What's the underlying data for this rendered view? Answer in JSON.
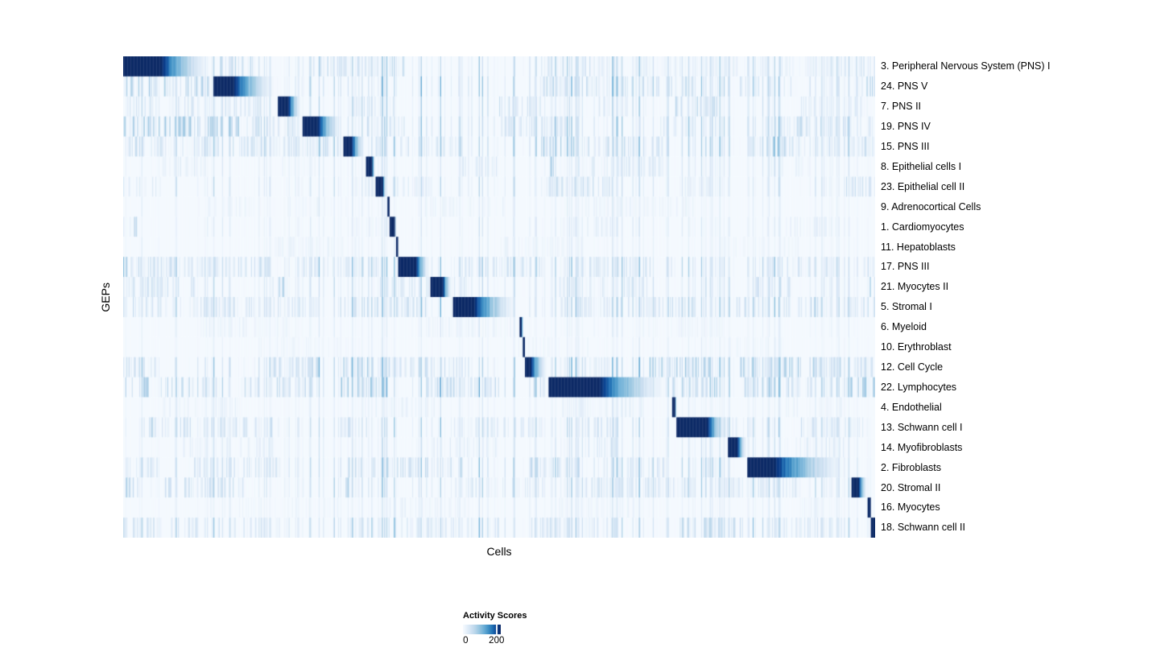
{
  "chart_data": {
    "type": "heatmap",
    "title": "",
    "xlabel": "Cells",
    "ylabel": "GEPs",
    "x_tick_labels": [],
    "legend": {
      "title": "Activity Scores",
      "min_label": "0",
      "max_label": "200",
      "min_value": 0,
      "tick_value": 200,
      "vmax": 225
    },
    "colormap": {
      "name": "Blues",
      "stops": [
        "#f7fbff",
        "#e3eef9",
        "#cfe1f2",
        "#b5d4e9",
        "#93c3df",
        "#6baed6",
        "#4292c6",
        "#2171b5",
        "#0a4191",
        "#0d2a66"
      ]
    },
    "n_cols": 700,
    "seed": 1337,
    "base_value": 0.018,
    "rows": [
      {
        "label": "3. Peripheral Nervous System (PNS) I",
        "block": [
          0.0,
          0.12
        ],
        "dark": 0.42,
        "noise": 0.8,
        "regions": [
          [
            0.12,
            0.175,
            0.3
          ],
          [
            0.25,
            0.34,
            0.28
          ],
          [
            0.355,
            0.375,
            0.35
          ],
          [
            0.555,
            0.625,
            0.4
          ],
          [
            0.63,
            0.8,
            0.12
          ],
          [
            0.8,
            0.97,
            0.15
          ],
          [
            0.975,
            1.0,
            0.25
          ]
        ]
      },
      {
        "label": "24. PNS V",
        "block": [
          0.12,
          0.206
        ],
        "dark": 0.31,
        "noise": 1.0,
        "regions": [
          [
            0.0,
            0.115,
            0.4
          ],
          [
            0.555,
            0.63,
            0.32
          ],
          [
            0.63,
            0.76,
            0.25
          ],
          [
            0.82,
            0.89,
            0.18
          ],
          [
            0.975,
            1.0,
            0.35
          ]
        ]
      },
      {
        "label": "7. PNS II",
        "block": [
          0.206,
          0.238
        ],
        "dark": 0.43,
        "noise": 0.7,
        "regions": [
          [
            0.0,
            0.19,
            0.22
          ],
          [
            0.3,
            0.36,
            0.18
          ],
          [
            0.5,
            0.56,
            0.25
          ],
          [
            0.63,
            0.7,
            0.18
          ],
          [
            0.735,
            0.795,
            0.32
          ],
          [
            0.9,
            0.99,
            0.15
          ]
        ]
      },
      {
        "label": "19. PNS IV",
        "block": [
          0.238,
          0.293
        ],
        "dark": 0.38,
        "noise": 1.0,
        "regions": [
          [
            0.0,
            0.155,
            0.45
          ],
          [
            0.155,
            0.23,
            0.28
          ],
          [
            0.325,
            0.375,
            0.3
          ],
          [
            0.5,
            0.6,
            0.22
          ],
          [
            0.715,
            0.775,
            0.18
          ],
          [
            0.85,
            1.0,
            0.28
          ]
        ]
      },
      {
        "label": "15. PNS III",
        "block": [
          0.293,
          0.323
        ],
        "dark": 0.36,
        "noise": 1.0,
        "regions": [
          [
            0.0,
            0.29,
            0.27
          ],
          [
            0.33,
            0.45,
            0.25
          ],
          [
            0.555,
            0.6,
            0.38
          ],
          [
            0.6,
            0.72,
            0.26
          ],
          [
            0.83,
            0.9,
            0.4
          ],
          [
            0.9,
            1.0,
            0.26
          ]
        ]
      },
      {
        "label": "8. Epithelial cells I",
        "block": [
          0.323,
          0.336
        ],
        "dark": 0.6,
        "noise": 0.5,
        "regions": [
          [
            0.05,
            0.11,
            0.14
          ],
          [
            0.21,
            0.26,
            0.14
          ],
          [
            0.44,
            0.5,
            0.18
          ],
          [
            0.565,
            0.575,
            0.45
          ],
          [
            0.6,
            0.72,
            0.18
          ],
          [
            0.86,
            0.92,
            0.12
          ]
        ]
      },
      {
        "label": "23. Epithelial cell II",
        "block": [
          0.336,
          0.351
        ],
        "dark": 0.6,
        "noise": 0.6,
        "regions": [
          [
            0.0,
            0.05,
            0.18
          ],
          [
            0.3,
            0.41,
            0.14
          ],
          [
            0.55,
            0.66,
            0.26
          ],
          [
            0.74,
            0.78,
            0.15
          ],
          [
            0.96,
            1.0,
            0.25
          ]
        ]
      },
      {
        "label": "9. Adrenocortical Cells",
        "block": [
          0.351,
          0.3545
        ],
        "dark": 0.85,
        "noise": 0.3,
        "regions": [
          [
            0.1,
            0.3,
            0.08
          ],
          [
            0.4,
            0.52,
            0.1
          ],
          [
            0.6,
            0.76,
            0.1
          ]
        ]
      },
      {
        "label": "1. Cardiomyocytes",
        "block": [
          0.3545,
          0.363
        ],
        "dark": 0.8,
        "noise": 0.4,
        "regions": [
          [
            0.0,
            0.02,
            0.3
          ],
          [
            0.3,
            0.36,
            0.12
          ],
          [
            0.58,
            0.66,
            0.16
          ],
          [
            0.88,
            0.95,
            0.12
          ]
        ]
      },
      {
        "label": "11. Hepatoblasts",
        "block": [
          0.363,
          0.366
        ],
        "dark": 0.9,
        "noise": 0.3,
        "regions": [
          [
            0.2,
            0.32,
            0.09
          ],
          [
            0.5,
            0.62,
            0.09
          ],
          [
            0.78,
            0.9,
            0.08
          ]
        ]
      },
      {
        "label": "17. PNS III",
        "block": [
          0.366,
          0.409
        ],
        "dark": 0.55,
        "noise": 0.9,
        "regions": [
          [
            0.0,
            0.006,
            0.85
          ],
          [
            0.01,
            0.2,
            0.26
          ],
          [
            0.24,
            0.34,
            0.22
          ],
          [
            0.44,
            0.56,
            0.22
          ],
          [
            0.6,
            0.73,
            0.26
          ],
          [
            0.84,
            0.95,
            0.22
          ],
          [
            0.985,
            1.0,
            0.3
          ]
        ]
      },
      {
        "label": "21. Myocytes II",
        "block": [
          0.409,
          0.438
        ],
        "dark": 0.55,
        "noise": 0.7,
        "regions": [
          [
            0.0,
            0.1,
            0.22
          ],
          [
            0.195,
            0.215,
            0.35
          ],
          [
            0.34,
            0.46,
            0.18
          ],
          [
            0.58,
            0.7,
            0.18
          ],
          [
            0.84,
            0.89,
            0.25
          ],
          [
            0.993,
            1.0,
            0.85
          ]
        ]
      },
      {
        "label": "5. Stromal I",
        "block": [
          0.438,
          0.527
        ],
        "dark": 0.32,
        "noise": 0.9,
        "regions": [
          [
            0.0,
            0.05,
            0.32
          ],
          [
            0.05,
            0.26,
            0.22
          ],
          [
            0.29,
            0.41,
            0.26
          ],
          [
            0.58,
            0.76,
            0.26
          ],
          [
            0.81,
            0.93,
            0.3
          ],
          [
            0.96,
            1.0,
            0.25
          ]
        ]
      },
      {
        "label": "6. Myeloid",
        "block": [
          0.527,
          0.531
        ],
        "dark": 0.9,
        "noise": 0.3,
        "regions": [
          [
            0.1,
            0.22,
            0.09
          ],
          [
            0.4,
            0.52,
            0.1
          ],
          [
            0.68,
            0.8,
            0.08
          ]
        ]
      },
      {
        "label": "10. Erythroblast",
        "block": [
          0.531,
          0.534
        ],
        "dark": 0.9,
        "noise": 0.25,
        "regions": [
          [
            0.18,
            0.3,
            0.07
          ],
          [
            0.52,
            0.62,
            0.08
          ],
          [
            0.8,
            0.88,
            0.06
          ]
        ]
      },
      {
        "label": "12. Cell Cycle",
        "block": [
          0.534,
          0.566
        ],
        "dark": 0.25,
        "noise": 1.0,
        "regions": [
          [
            0.0,
            0.05,
            0.26
          ],
          [
            0.195,
            0.26,
            0.3
          ],
          [
            0.285,
            0.335,
            0.4
          ],
          [
            0.34,
            0.46,
            0.26
          ],
          [
            0.6,
            0.65,
            0.22
          ],
          [
            0.7,
            0.78,
            0.45
          ],
          [
            0.82,
            0.96,
            0.4
          ],
          [
            0.97,
            1.0,
            0.26
          ]
        ]
      },
      {
        "label": "22. Lymphocytes",
        "block": [
          0.566,
          0.73
        ],
        "dark": 0.41,
        "noise": 1.1,
        "regions": [
          [
            0.0,
            0.035,
            0.45
          ],
          [
            0.05,
            0.13,
            0.35
          ],
          [
            0.15,
            0.26,
            0.3
          ],
          [
            0.29,
            0.35,
            0.45
          ],
          [
            0.4,
            0.5,
            0.28
          ],
          [
            0.545,
            0.56,
            0.45
          ],
          [
            0.73,
            0.79,
            0.4
          ],
          [
            0.82,
            0.92,
            0.28
          ],
          [
            0.96,
            1.0,
            0.45
          ]
        ]
      },
      {
        "label": "4. Endothelial",
        "block": [
          0.73,
          0.7355
        ],
        "dark": 0.85,
        "noise": 0.35,
        "regions": [
          [
            0.05,
            0.16,
            0.1
          ],
          [
            0.3,
            0.42,
            0.1
          ],
          [
            0.58,
            0.7,
            0.13
          ],
          [
            0.88,
            0.96,
            0.09
          ]
        ]
      },
      {
        "label": "13. Schwann cell I",
        "block": [
          0.7355,
          0.805
        ],
        "dark": 0.6,
        "noise": 0.8,
        "regions": [
          [
            0.025,
            0.105,
            0.32
          ],
          [
            0.105,
            0.21,
            0.26
          ],
          [
            0.29,
            0.335,
            0.26
          ],
          [
            0.44,
            0.56,
            0.18
          ],
          [
            0.6,
            0.66,
            0.22
          ],
          [
            0.78,
            0.84,
            0.18
          ],
          [
            0.9,
            0.985,
            0.26
          ]
        ]
      },
      {
        "label": "14. Myofibroblasts",
        "block": [
          0.805,
          0.83
        ],
        "dark": 0.48,
        "noise": 0.5,
        "regions": [
          [
            0.08,
            0.2,
            0.13
          ],
          [
            0.38,
            0.5,
            0.13
          ],
          [
            0.61,
            0.66,
            0.25
          ],
          [
            0.88,
            0.96,
            0.16
          ]
        ]
      },
      {
        "label": "2. Fibroblasts",
        "block": [
          0.83,
          0.969
        ],
        "dark": 0.26,
        "noise": 0.9,
        "regions": [
          [
            0.0,
            0.05,
            0.22
          ],
          [
            0.09,
            0.21,
            0.22
          ],
          [
            0.3,
            0.42,
            0.3
          ],
          [
            0.425,
            0.45,
            0.45
          ],
          [
            0.54,
            0.61,
            0.3
          ],
          [
            0.64,
            0.72,
            0.22
          ],
          [
            0.76,
            0.8,
            0.18
          ]
        ]
      },
      {
        "label": "20. Stromal II",
        "block": [
          0.969,
          0.99
        ],
        "dark": 0.45,
        "noise": 0.8,
        "regions": [
          [
            0.0,
            0.02,
            0.45
          ],
          [
            0.05,
            0.16,
            0.26
          ],
          [
            0.295,
            0.315,
            0.4
          ],
          [
            0.44,
            0.56,
            0.18
          ],
          [
            0.6,
            0.76,
            0.22
          ],
          [
            0.79,
            0.9,
            0.18
          ]
        ]
      },
      {
        "label": "16. Myocytes",
        "block": [
          0.99,
          0.9945
        ],
        "dark": 0.85,
        "noise": 0.35,
        "regions": [
          [
            0.1,
            0.3,
            0.08
          ],
          [
            0.35,
            0.46,
            0.11
          ],
          [
            0.58,
            0.7,
            0.09
          ],
          [
            0.9,
            0.97,
            0.08
          ]
        ]
      },
      {
        "label": "18. Schwann cell II",
        "block": [
          0.9945,
          1.0
        ],
        "dark": 0.9,
        "noise": 0.9,
        "regions": [
          [
            0.0,
            0.1,
            0.26
          ],
          [
            0.12,
            0.21,
            0.22
          ],
          [
            0.3,
            0.5,
            0.18
          ],
          [
            0.54,
            0.66,
            0.22
          ],
          [
            0.74,
            0.825,
            0.35
          ],
          [
            0.85,
            0.96,
            0.22
          ]
        ]
      }
    ]
  }
}
